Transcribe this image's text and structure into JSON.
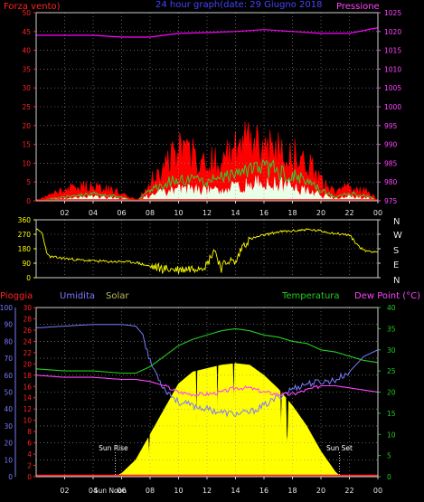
{
  "header": {
    "left_label": "Forza vento)",
    "title": "24 hour graph(date: 29 Giugno 2018",
    "right_label": "Pressione"
  },
  "compass": {
    "letters": [
      "N",
      "W",
      "S",
      "E",
      "N"
    ]
  },
  "bottom_header": {
    "rain": "Pioggia",
    "humidity": "Umidita",
    "solar": "Solar",
    "temperature": "Temperatura",
    "dewpoint": "Dew Point (°C)"
  },
  "annotations": {
    "sun_rise": "Sun Rise",
    "sun_set": "Sun Set",
    "sun_noon_overlap": "Sun Noon"
  },
  "colors": {
    "wind_gust": "#ff0000",
    "wind_avg": "#33cc33",
    "wind_min": "#e8ffe8",
    "pressure": "#ff00ff",
    "direction": "#ffff00",
    "humidity": "#7a7aff",
    "temperature": "#22cc22",
    "dewpoint": "#ff44ff",
    "solar": "#ffff00",
    "rain": "#ff2222"
  },
  "chart_data": [
    {
      "type": "line",
      "name": "wind-pressure",
      "x_ticks": [
        "02",
        "04",
        "06",
        "08",
        "10",
        "12",
        "14",
        "16",
        "18",
        "20",
        "22",
        "00"
      ],
      "y_left_ticks": [
        0,
        5,
        10,
        15,
        20,
        25,
        30,
        35,
        40,
        45,
        50
      ],
      "y_right_ticks": [
        975,
        980,
        985,
        990,
        995,
        1000,
        1005,
        1010,
        1015,
        1020,
        1025
      ],
      "ylim_left": [
        0,
        50
      ],
      "ylim_right": [
        975,
        1025
      ],
      "xlim": [
        0,
        24
      ],
      "pressure": {
        "x": [
          0,
          2,
          4,
          6,
          8,
          10,
          12,
          14,
          16,
          18,
          20,
          22,
          24
        ],
        "y": [
          1019,
          1019,
          1019,
          1018.5,
          1018.5,
          1019.5,
          1019.7,
          1020,
          1020.5,
          1020,
          1019.5,
          1019.5,
          1021
        ]
      },
      "gust_profile": {
        "x": [
          0,
          2,
          4,
          6,
          7.1,
          8,
          10,
          12,
          14,
          15,
          16,
          18,
          19,
          20,
          21,
          22,
          23.5,
          24
        ],
        "y": [
          0,
          3,
          4,
          2,
          0,
          5,
          13,
          10,
          13,
          17,
          14,
          12,
          10,
          5,
          2,
          4,
          2,
          0
        ]
      },
      "avg_profile": {
        "x": [
          0,
          2,
          4,
          6,
          7.1,
          8,
          10,
          12,
          14,
          15,
          16,
          18,
          19,
          20,
          21,
          22,
          23.5,
          24
        ],
        "y": [
          0,
          1,
          2,
          1,
          0,
          3,
          6,
          5,
          7,
          8,
          9,
          7,
          5,
          3,
          1,
          2,
          1,
          0
        ]
      }
    },
    {
      "type": "scatter",
      "name": "wind-direction",
      "y_ticks": [
        0,
        90,
        180,
        270,
        360
      ],
      "ylim": [
        0,
        360
      ],
      "xlim": [
        0,
        24
      ],
      "x": [
        0,
        0.4,
        0.8,
        1,
        2,
        3,
        4,
        5,
        6,
        7,
        8,
        9,
        10,
        11,
        12,
        12.5,
        13,
        13.5,
        14,
        14.5,
        15,
        16,
        17,
        18,
        19,
        20,
        21,
        22,
        22.5,
        23,
        24
      ],
      "y": [
        300,
        280,
        140,
        130,
        120,
        110,
        105,
        100,
        100,
        95,
        70,
        55,
        50,
        60,
        80,
        180,
        60,
        110,
        90,
        200,
        240,
        265,
        285,
        290,
        300,
        290,
        275,
        265,
        210,
        170,
        160
      ]
    },
    {
      "type": "line",
      "name": "rain-humidity-solar-temperature",
      "x_ticks": [
        "02",
        "04",
        "06",
        "08",
        "10",
        "12",
        "14",
        "16",
        "18",
        "20",
        "22",
        "00"
      ],
      "y_humidity_ticks": [
        0,
        10,
        20,
        30,
        40,
        50,
        60,
        70,
        80,
        90,
        100
      ],
      "y_rain_ticks": [
        0,
        2,
        4,
        6,
        8,
        10,
        12,
        14,
        16,
        18,
        20,
        22,
        24,
        26,
        28,
        30
      ],
      "y_temperature_ticks": [
        0,
        5,
        10,
        15,
        20,
        25,
        30,
        35,
        40
      ],
      "ylim_humidity": [
        0,
        100
      ],
      "ylim_temperature": [
        0,
        40
      ],
      "xlim": [
        0,
        24
      ],
      "humidity": {
        "x": [
          0,
          2,
          4,
          6,
          7,
          7.5,
          8,
          9,
          10,
          11,
          12,
          13,
          14,
          15,
          16,
          17,
          18,
          19,
          20,
          21,
          22,
          23,
          24
        ],
        "y": [
          88,
          89,
          90,
          90,
          89,
          84,
          68,
          52,
          44,
          42,
          40,
          38,
          37,
          38,
          42,
          47,
          52,
          55,
          56,
          57,
          62,
          71,
          75
        ]
      },
      "temperature": {
        "x": [
          0,
          2,
          4,
          6,
          7,
          8,
          9,
          10,
          11,
          12,
          13,
          14,
          15,
          16,
          17,
          18,
          19,
          20,
          21,
          22,
          23,
          24
        ],
        "y": [
          25.5,
          25,
          25,
          24.5,
          24.5,
          26,
          28.5,
          31,
          32.5,
          33.5,
          34.5,
          35,
          34.5,
          33.5,
          33,
          32,
          31.5,
          30,
          29.5,
          28.5,
          27.5,
          27
        ]
      },
      "dewpoint": {
        "x": [
          0,
          2,
          4,
          6,
          7,
          8,
          9,
          10,
          11,
          12,
          13,
          14,
          15,
          16,
          17,
          18,
          19,
          20,
          21,
          22,
          23,
          24
        ],
        "y": [
          24,
          23.5,
          23.5,
          23,
          23,
          22.5,
          21.5,
          20,
          19.5,
          19.5,
          20,
          21,
          21,
          20,
          19.5,
          19.5,
          20.5,
          21.5,
          21.5,
          21,
          20.5,
          20
        ]
      },
      "solar": {
        "x": [
          0,
          5.5,
          6,
          7,
          8,
          9,
          10,
          11,
          12,
          13,
          14,
          15,
          16,
          17,
          18,
          19,
          20,
          21,
          21.4,
          24
        ],
        "y": [
          0,
          0,
          2,
          10,
          25,
          40,
          55,
          62,
          64,
          66,
          67,
          66,
          60,
          52,
          42,
          30,
          15,
          3,
          0,
          0
        ]
      },
      "rain": {
        "x": [
          0,
          24
        ],
        "y": [
          0,
          0
        ]
      }
    }
  ]
}
